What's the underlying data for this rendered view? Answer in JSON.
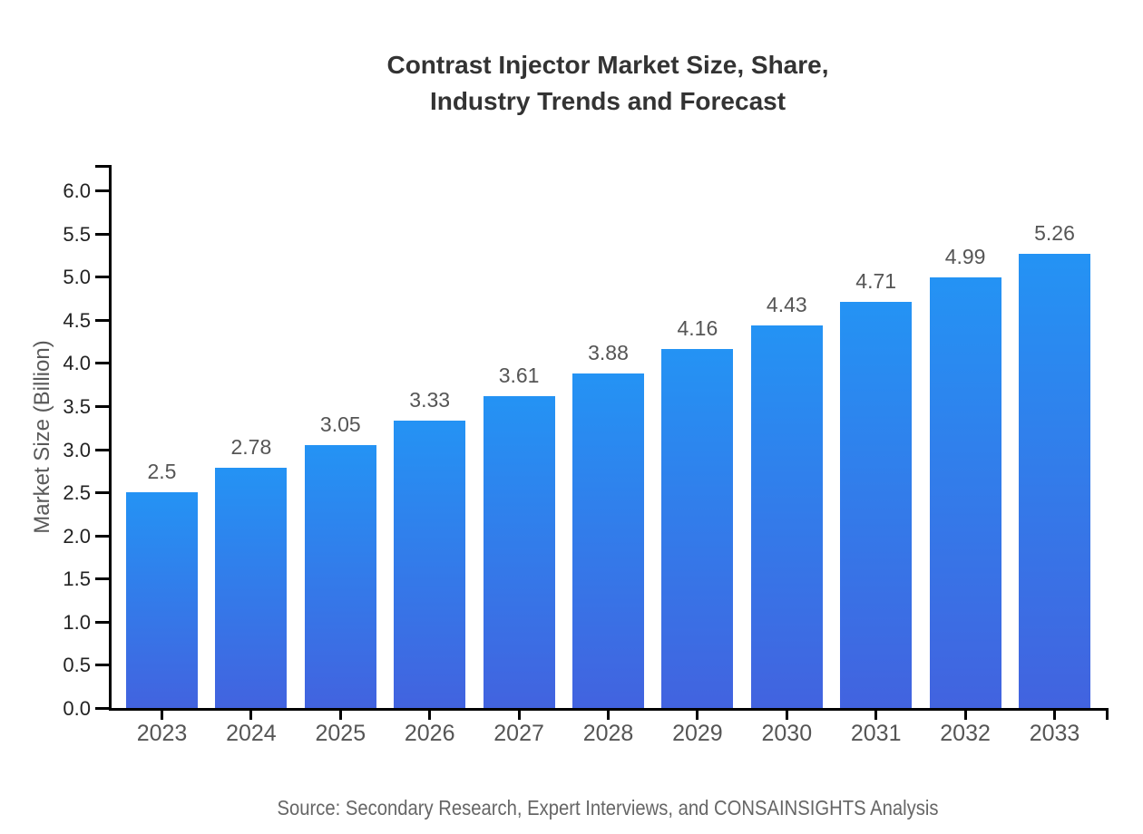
{
  "chart_data": {
    "type": "bar",
    "title_lines": [
      "Contrast Injector Market Size, Share,",
      "Industry Trends and Forecast"
    ],
    "ylabel": "Market Size (Billion)",
    "categories": [
      "2023",
      "2024",
      "2025",
      "2026",
      "2027",
      "2028",
      "2029",
      "2030",
      "2031",
      "2032",
      "2033"
    ],
    "values": [
      2.5,
      2.78,
      3.05,
      3.33,
      3.61,
      3.88,
      4.16,
      4.43,
      4.71,
      4.99,
      5.26
    ],
    "value_labels": [
      "2.5",
      "2.78",
      "3.05",
      "3.33",
      "3.61",
      "3.88",
      "4.16",
      "4.43",
      "4.71",
      "4.99",
      "5.26"
    ],
    "ytick_labels": [
      "0.0",
      "0.5",
      "1.0",
      "1.5",
      "2.0",
      "2.5",
      "3.0",
      "3.5",
      "4.0",
      "4.5",
      "5.0",
      "5.5",
      "6.0"
    ],
    "ylim": [
      0,
      6.3
    ],
    "grid": "off",
    "legend": "none",
    "source": "Source: Secondary Research, Expert Interviews, and CONSAINSIGHTS Analysis",
    "colors": {
      "bar_gradient_top": "#2493f4",
      "bar_gradient_bottom": "#4263df",
      "axis": "#000000",
      "title": "#333333",
      "ytick_text": "#222222",
      "xtick_text": "#555555",
      "value_text": "#555555",
      "source_text": "#666666"
    }
  }
}
